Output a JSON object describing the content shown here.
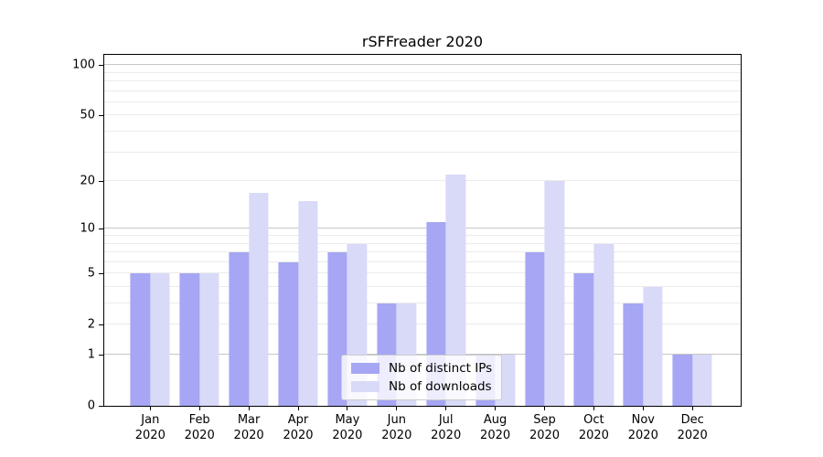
{
  "title": "rSFFreader 2020",
  "chart_data": {
    "type": "bar",
    "title": "rSFFreader 2020",
    "categories": [
      "Jan 2020",
      "Feb 2020",
      "Mar 2020",
      "Apr 2020",
      "May 2020",
      "Jun 2020",
      "Jul 2020",
      "Aug 2020",
      "Sep 2020",
      "Oct 2020",
      "Nov 2020",
      "Dec 2020"
    ],
    "series": [
      {
        "name": "Nb of distinct IPs",
        "color": "#a6a6f4",
        "values": [
          5,
          5,
          7,
          6,
          7,
          3,
          11,
          1,
          7,
          5,
          3,
          1
        ]
      },
      {
        "name": "Nb of downloads",
        "color": "#d9d9f8",
        "values": [
          5,
          5,
          17,
          15,
          8,
          3,
          22,
          1,
          20,
          8,
          4,
          1
        ]
      }
    ],
    "xlabel": "",
    "ylabel": "",
    "yscale": "log1p",
    "ylim": [
      0,
      115
    ],
    "yticks_labeled": [
      0,
      1,
      2,
      5,
      10,
      20,
      50,
      100
    ],
    "grid_major": [
      1,
      10,
      100
    ],
    "grid_minor": [
      2,
      3,
      4,
      5,
      6,
      7,
      8,
      9,
      20,
      30,
      40,
      50,
      60,
      70,
      80,
      90
    ],
    "grid": "horizontal major+minor",
    "legend_position": "lower center"
  },
  "legend": {
    "items": [
      {
        "label": "Nb of distinct IPs",
        "color": "#a6a6f4"
      },
      {
        "label": "Nb of downloads",
        "color": "#d9d9f8"
      }
    ]
  }
}
